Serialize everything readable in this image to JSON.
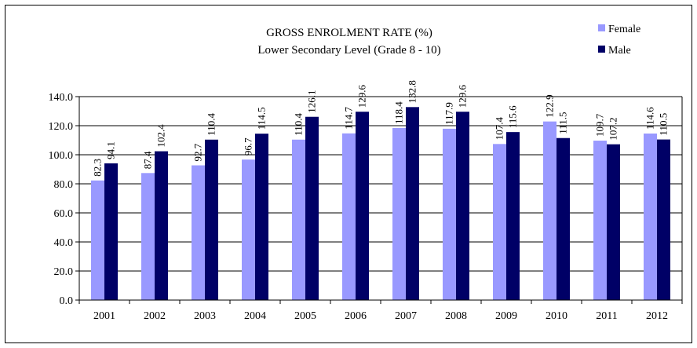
{
  "chart_data": {
    "type": "bar",
    "title": "GROSS ENROLMENT RATE (%)",
    "subtitle": "Lower Secondary Level (Grade 8 - 10)",
    "xlabel": "",
    "ylabel": "",
    "categories": [
      "2001",
      "2002",
      "2003",
      "2004",
      "2005",
      "2006",
      "2007",
      "2008",
      "2009",
      "2010",
      "2011",
      "2012"
    ],
    "series": [
      {
        "name": "Female",
        "color": "#9999ff",
        "values": [
          82.3,
          87.4,
          92.7,
          96.7,
          110.4,
          114.7,
          118.4,
          117.9,
          107.4,
          122.9,
          109.7,
          114.6
        ]
      },
      {
        "name": "Male",
        "color": "#000066",
        "values": [
          94.1,
          102.4,
          110.4,
          114.5,
          126.1,
          129.6,
          132.8,
          129.6,
          115.6,
          111.5,
          107.2,
          110.5
        ]
      }
    ],
    "ylim": [
      0,
      140
    ],
    "yticks": [
      "0.0",
      "20.0",
      "40.0",
      "60.0",
      "80.0",
      "100.0",
      "120.0",
      "140.0"
    ],
    "grid": true,
    "legend_position": "top-right"
  }
}
